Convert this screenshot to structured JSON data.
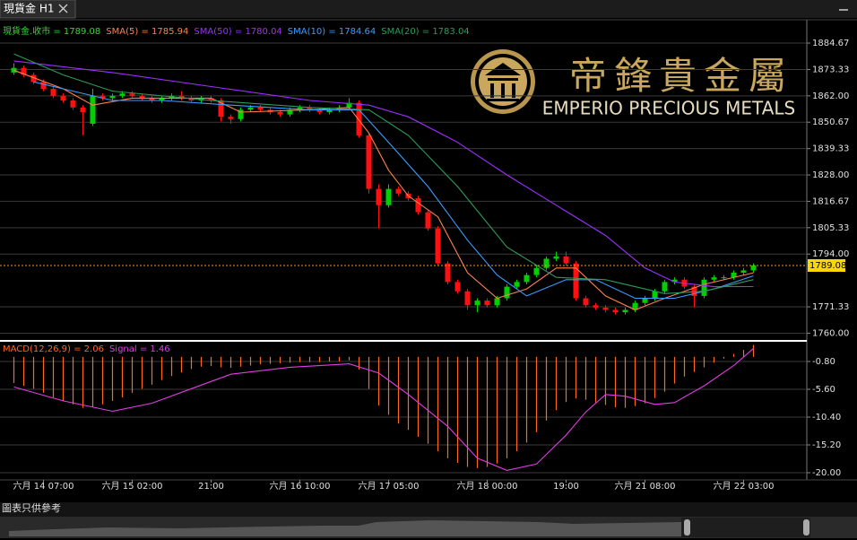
{
  "tab": {
    "title": "現貨金 H1"
  },
  "logo": {
    "chinese": "帝鋒貴金屬",
    "english": "EMPERIO PRECIOUS METALS"
  },
  "footer": "圖表只供參考",
  "chart_data": [
    {
      "type": "candlestick",
      "name": "現貨金.收市 = 1789.08",
      "name_color": "#3cd23c",
      "up_color": "#00d000",
      "down_color": "#ff1010",
      "last_color": "#ffd700",
      "grid": true,
      "ylim": [
        1756.7,
        1894.7
      ],
      "yticks": [
        {
          "value": 1760,
          "label": "1760.00"
        },
        {
          "value": 1771.33,
          "label": "1771.33"
        },
        {
          "value": 1794,
          "label": "1794.00"
        },
        {
          "value": 1805.33,
          "label": "1805.33"
        },
        {
          "value": 1816.67,
          "label": "1816.67"
        },
        {
          "value": 1828,
          "label": "1828.00"
        },
        {
          "value": 1839.33,
          "label": "1839.33"
        },
        {
          "value": 1850.67,
          "label": "1850.67"
        },
        {
          "value": 1862,
          "label": "1862.00"
        },
        {
          "value": 1873.33,
          "label": "1873.33"
        },
        {
          "value": 1884.67,
          "label": "1884.67"
        }
      ],
      "open": [
        1872,
        1874,
        1871,
        1868,
        1865,
        1862,
        1860,
        1857,
        1850,
        1862,
        1861,
        1862,
        1863,
        1862,
        1861,
        1860,
        1861,
        1862,
        1861,
        1860,
        1861,
        1860,
        1853,
        1852,
        1856,
        1857,
        1856,
        1855,
        1854,
        1856,
        1857,
        1856,
        1855,
        1856,
        1857,
        1859,
        1845,
        1822,
        1815,
        1822,
        1820,
        1818,
        1812,
        1805,
        1790,
        1782,
        1778,
        1772,
        1774,
        1772,
        1775,
        1780,
        1782,
        1785,
        1788,
        1792,
        1793,
        1790,
        1775,
        1772,
        1771,
        1770,
        1769,
        1770,
        1773,
        1775,
        1778,
        1782,
        1783,
        1780,
        1776,
        1783,
        1784,
        1784,
        1786,
        1787
      ],
      "high": [
        1876,
        1875,
        1872,
        1869,
        1866,
        1863,
        1861,
        1858,
        1865,
        1863,
        1863,
        1864,
        1864,
        1863,
        1862,
        1862,
        1863,
        1864,
        1862,
        1862,
        1862,
        1861,
        1854,
        1857,
        1858,
        1858,
        1857,
        1856,
        1857,
        1858,
        1858,
        1857,
        1857,
        1858,
        1861,
        1860,
        1846,
        1824,
        1824,
        1823,
        1821,
        1819,
        1813,
        1806,
        1791,
        1783,
        1779,
        1775,
        1775,
        1776,
        1781,
        1783,
        1786,
        1789,
        1793,
        1795,
        1795,
        1791,
        1776,
        1773,
        1772,
        1771,
        1771,
        1774,
        1776,
        1779,
        1783,
        1784,
        1784,
        1781,
        1784,
        1785,
        1785,
        1787,
        1788,
        1790
      ],
      "low": [
        1871,
        1870,
        1867,
        1864,
        1861,
        1859,
        1856,
        1845,
        1849,
        1860,
        1860,
        1861,
        1861,
        1860,
        1859,
        1859,
        1860,
        1860,
        1859,
        1859,
        1859,
        1851,
        1850,
        1851,
        1855,
        1855,
        1854,
        1853,
        1853,
        1855,
        1855,
        1854,
        1854,
        1855,
        1856,
        1844,
        1820,
        1805,
        1814,
        1819,
        1817,
        1811,
        1804,
        1789,
        1781,
        1777,
        1770,
        1769,
        1771,
        1771,
        1774,
        1779,
        1781,
        1784,
        1787,
        1791,
        1789,
        1774,
        1771,
        1770,
        1769,
        1768,
        1768,
        1769,
        1772,
        1774,
        1777,
        1781,
        1779,
        1771,
        1775,
        1782,
        1783,
        1783,
        1785,
        1786
      ],
      "close": [
        1874,
        1871,
        1868,
        1865,
        1862,
        1860,
        1857,
        1855,
        1862,
        1861,
        1862,
        1863,
        1862,
        1861,
        1860,
        1861,
        1862,
        1861,
        1860,
        1861,
        1860,
        1853,
        1852,
        1856,
        1857,
        1856,
        1855,
        1854,
        1856,
        1857,
        1856,
        1855,
        1856,
        1857,
        1859,
        1845,
        1822,
        1815,
        1822,
        1820,
        1818,
        1812,
        1805,
        1790,
        1782,
        1778,
        1772,
        1774,
        1772,
        1775,
        1780,
        1782,
        1785,
        1788,
        1792,
        1793,
        1790,
        1775,
        1772,
        1771,
        1770,
        1769,
        1770,
        1773,
        1775,
        1778,
        1782,
        1783,
        1780,
        1776,
        1783,
        1784,
        1784,
        1786,
        1787,
        1789.08
      ],
      "series": [
        {
          "name": "SMA(5) = 1785.94",
          "color": "#ff8050",
          "x": [
            0,
            5,
            8,
            12,
            20,
            23,
            30,
            34,
            36,
            38,
            40,
            43,
            46,
            49,
            52,
            55,
            57,
            60,
            63,
            66,
            70,
            75
          ],
          "values": [
            1873,
            1865,
            1858,
            1861,
            1861,
            1855,
            1856,
            1857,
            1846,
            1830,
            1819,
            1810,
            1786,
            1775,
            1779,
            1788,
            1788,
            1776,
            1770,
            1775,
            1781,
            1785.94
          ]
        },
        {
          "name": "SMA(50) = 1780.04",
          "color": "#9b30ff",
          "x": [
            0,
            10,
            20,
            30,
            36,
            40,
            45,
            50,
            55,
            60,
            64,
            67,
            71,
            75
          ],
          "values": [
            1877,
            1872,
            1866,
            1860,
            1858,
            1853,
            1842,
            1828,
            1815,
            1802,
            1788,
            1782,
            1780,
            1780.04
          ]
        },
        {
          "name": "SMA(10) = 1784.64",
          "color": "#3a9cff",
          "x": [
            2,
            6,
            10,
            15,
            22,
            30,
            35,
            38,
            42,
            46,
            49,
            52,
            56,
            59,
            63,
            67,
            71,
            75
          ],
          "values": [
            1868,
            1864,
            1860,
            1860,
            1858,
            1856,
            1856,
            1842,
            1823,
            1800,
            1785,
            1776,
            1783,
            1783,
            1775,
            1775,
            1779,
            1784.64
          ]
        },
        {
          "name": "SMA(20) = 1783.04",
          "color": "#2e9b5a",
          "x": [
            0,
            5,
            10,
            20,
            30,
            36,
            40,
            45,
            50,
            55,
            60,
            66,
            70,
            75
          ],
          "values": [
            1880,
            1871,
            1864,
            1860,
            1857,
            1856,
            1845,
            1823,
            1797,
            1784,
            1783,
            1777,
            1778,
            1783.04
          ]
        }
      ]
    },
    {
      "type": "bar",
      "grid": true,
      "ylim": [
        -21.24,
        2.45
      ],
      "yticks": [
        {
          "value": -20,
          "label": "-20.00"
        },
        {
          "value": -15.2,
          "label": "-15.20"
        },
        {
          "value": -10.4,
          "label": "-10.40"
        },
        {
          "value": -5.6,
          "label": "-5.60"
        },
        {
          "value": -0.8,
          "label": "-0.80"
        }
      ],
      "categories": [
        null,
        null,
        null,
        "六月 14 07:00",
        null,
        null,
        null,
        null,
        null,
        null,
        null,
        null,
        "六月 15 02:00",
        null,
        null,
        null,
        null,
        null,
        null,
        null,
        "21:00",
        null,
        null,
        null,
        null,
        null,
        null,
        null,
        null,
        "六月 16 10:00",
        null,
        null,
        null,
        null,
        null,
        null,
        null,
        null,
        "六月 17 05:00",
        null,
        null,
        null,
        null,
        null,
        null,
        null,
        null,
        null,
        "六月 18 00:00",
        null,
        null,
        null,
        null,
        null,
        null,
        null,
        "19:00",
        null,
        null,
        null,
        null,
        null,
        null,
        null,
        "六月 21 08:00",
        null,
        null,
        null,
        null,
        null,
        null,
        null,
        null,
        null,
        "六月 22 03:00",
        null
      ],
      "series": [
        {
          "name": "MACD(12,26,9) = 2.06",
          "color": "#ff6a1a",
          "values": [
            -4.5,
            -5,
            -5.5,
            -6.2,
            -7,
            -7.6,
            -8.2,
            -8.8,
            -8.7,
            -8.2,
            -7.6,
            -7,
            -6.2,
            -5.5,
            -4.8,
            -4,
            -3.3,
            -2.7,
            -2.1,
            -1.7,
            -1.6,
            -1.8,
            -1.9,
            -1.7,
            -1.5,
            -1.3,
            -1.2,
            -1.1,
            -1,
            -0.9,
            -0.9,
            -0.9,
            -0.8,
            -0.8,
            -0.6,
            -2.2,
            -5.5,
            -8.4,
            -10,
            -11.5,
            -12.6,
            -13.8,
            -15,
            -16.3,
            -17.5,
            -18.3,
            -19,
            -19.2,
            -19,
            -18.4,
            -17.5,
            -16.3,
            -14.8,
            -13,
            -11,
            -9.2,
            -7.8,
            -7.2,
            -7.4,
            -7.9,
            -8.3,
            -8.7,
            -8.8,
            -8.5,
            -8,
            -7.1,
            -6,
            -4.6,
            -3.4,
            -2.6,
            -1.8,
            -1,
            -0.3,
            0.5,
            1.2,
            2.06
          ]
        },
        {
          "name": "Signal = 1.46",
          "color": "#e23ce2",
          "x": [
            0,
            5,
            10,
            14,
            18,
            22,
            28,
            34,
            37,
            40,
            44,
            47,
            50,
            53,
            56,
            58,
            60,
            62,
            65,
            67,
            70,
            73,
            75
          ],
          "values": [
            -5.2,
            -7.6,
            -9.4,
            -8,
            -5.5,
            -3,
            -1.8,
            -1.2,
            -2.8,
            -6.5,
            -12,
            -17.5,
            -19.6,
            -18.5,
            -13.5,
            -9.5,
            -6.5,
            -6.8,
            -8.2,
            -7.9,
            -5,
            -1.5,
            1.46
          ]
        }
      ]
    }
  ]
}
